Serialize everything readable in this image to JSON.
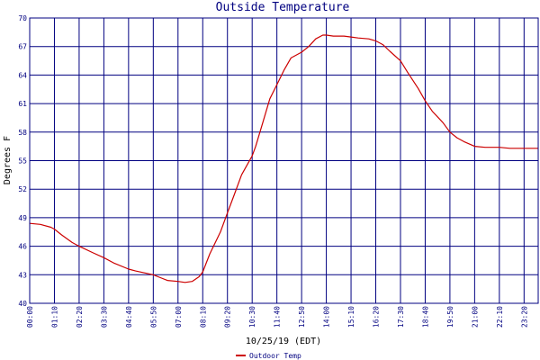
{
  "chart_data": {
    "type": "line",
    "title": "Outside Temperature",
    "xlabel": "10/25/19 (EDT)",
    "ylabel": "Degrees F",
    "ylim": [
      40,
      70
    ],
    "yticks": [
      40,
      43,
      46,
      49,
      52,
      55,
      58,
      61,
      64,
      67,
      70
    ],
    "xticks": [
      "00:00",
      "01:10",
      "02:20",
      "03:30",
      "04:40",
      "05:50",
      "07:00",
      "08:10",
      "09:20",
      "10:30",
      "11:40",
      "12:50",
      "14:00",
      "15:10",
      "16:20",
      "17:30",
      "18:40",
      "19:50",
      "21:00",
      "22:10",
      "23:20"
    ],
    "grid": true,
    "legend_position": "bottom-left",
    "series": [
      {
        "name": "Outdoor Temp",
        "color": "#cc0000",
        "x": [
          "00:00",
          "00:30",
          "01:00",
          "01:10",
          "01:30",
          "02:00",
          "02:20",
          "03:00",
          "03:30",
          "04:00",
          "04:40",
          "05:00",
          "05:50",
          "06:10",
          "06:30",
          "07:00",
          "07:20",
          "07:40",
          "08:00",
          "08:10",
          "08:30",
          "09:00",
          "09:20",
          "09:40",
          "10:00",
          "10:30",
          "10:40",
          "11:00",
          "11:20",
          "11:40",
          "12:00",
          "12:20",
          "12:50",
          "13:10",
          "13:30",
          "13:50",
          "14:00",
          "14:20",
          "14:50",
          "15:10",
          "15:30",
          "16:00",
          "16:20",
          "16:40",
          "17:00",
          "17:30",
          "17:50",
          "18:20",
          "18:40",
          "19:00",
          "19:30",
          "19:50",
          "20:10",
          "20:30",
          "21:00",
          "21:30",
          "22:00",
          "22:10",
          "22:40",
          "23:00",
          "23:20",
          "23:59"
        ],
        "values": [
          48.4,
          48.3,
          48.0,
          47.8,
          47.2,
          46.4,
          46.0,
          45.3,
          44.8,
          44.2,
          43.6,
          43.4,
          43.0,
          42.7,
          42.4,
          42.3,
          42.2,
          42.3,
          42.8,
          43.3,
          45.2,
          47.5,
          49.5,
          51.5,
          53.5,
          55.5,
          56.5,
          59.0,
          61.5,
          63.0,
          64.5,
          65.8,
          66.4,
          67.0,
          67.8,
          68.2,
          68.2,
          68.1,
          68.1,
          68.0,
          67.9,
          67.8,
          67.6,
          67.2,
          66.5,
          65.5,
          64.3,
          62.6,
          61.3,
          60.2,
          59.0,
          58.0,
          57.4,
          57.0,
          56.5,
          56.4,
          56.4,
          56.4,
          56.3,
          56.3,
          56.3,
          56.3
        ]
      }
    ]
  }
}
